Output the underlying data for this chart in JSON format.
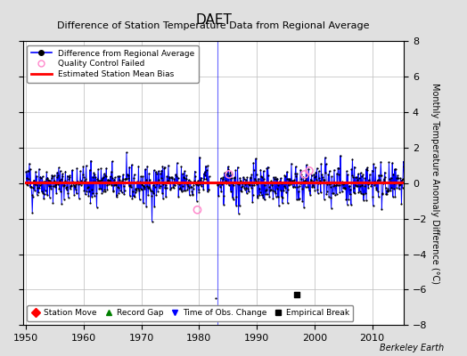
{
  "title": "DAET",
  "subtitle": "Difference of Station Temperature Data from Regional Average",
  "ylabel_right": "Monthly Temperature Anomaly Difference (°C)",
  "xlim": [
    1949.5,
    2015.5
  ],
  "ylim": [
    -8,
    8
  ],
  "yticks": [
    -8,
    -6,
    -4,
    -2,
    0,
    2,
    4,
    6,
    8
  ],
  "xticks": [
    1950,
    1960,
    1970,
    1980,
    1990,
    2000,
    2010
  ],
  "background_color": "#e0e0e0",
  "plot_bg_color": "#ffffff",
  "grid_color": "#bbbbbb",
  "line_color": "#0000ff",
  "marker_color": "#000000",
  "bias_color": "#ff0000",
  "qc_color": "#ff88cc",
  "time_obs_change_year": 1983.2,
  "empirical_break_year": 1997.0,
  "empirical_break_value": -6.3,
  "qc_failed_points": [
    [
      1979.7,
      -1.5
    ],
    [
      1985.2,
      0.5
    ],
    [
      1998.3,
      0.5
    ],
    [
      1999.1,
      0.7
    ]
  ],
  "seed": 42,
  "start_year": 1950,
  "end_year": 2015,
  "watermark": "Berkeley Earth",
  "title_fontsize": 11,
  "subtitle_fontsize": 8,
  "tick_fontsize": 8,
  "ylabel_fontsize": 7
}
